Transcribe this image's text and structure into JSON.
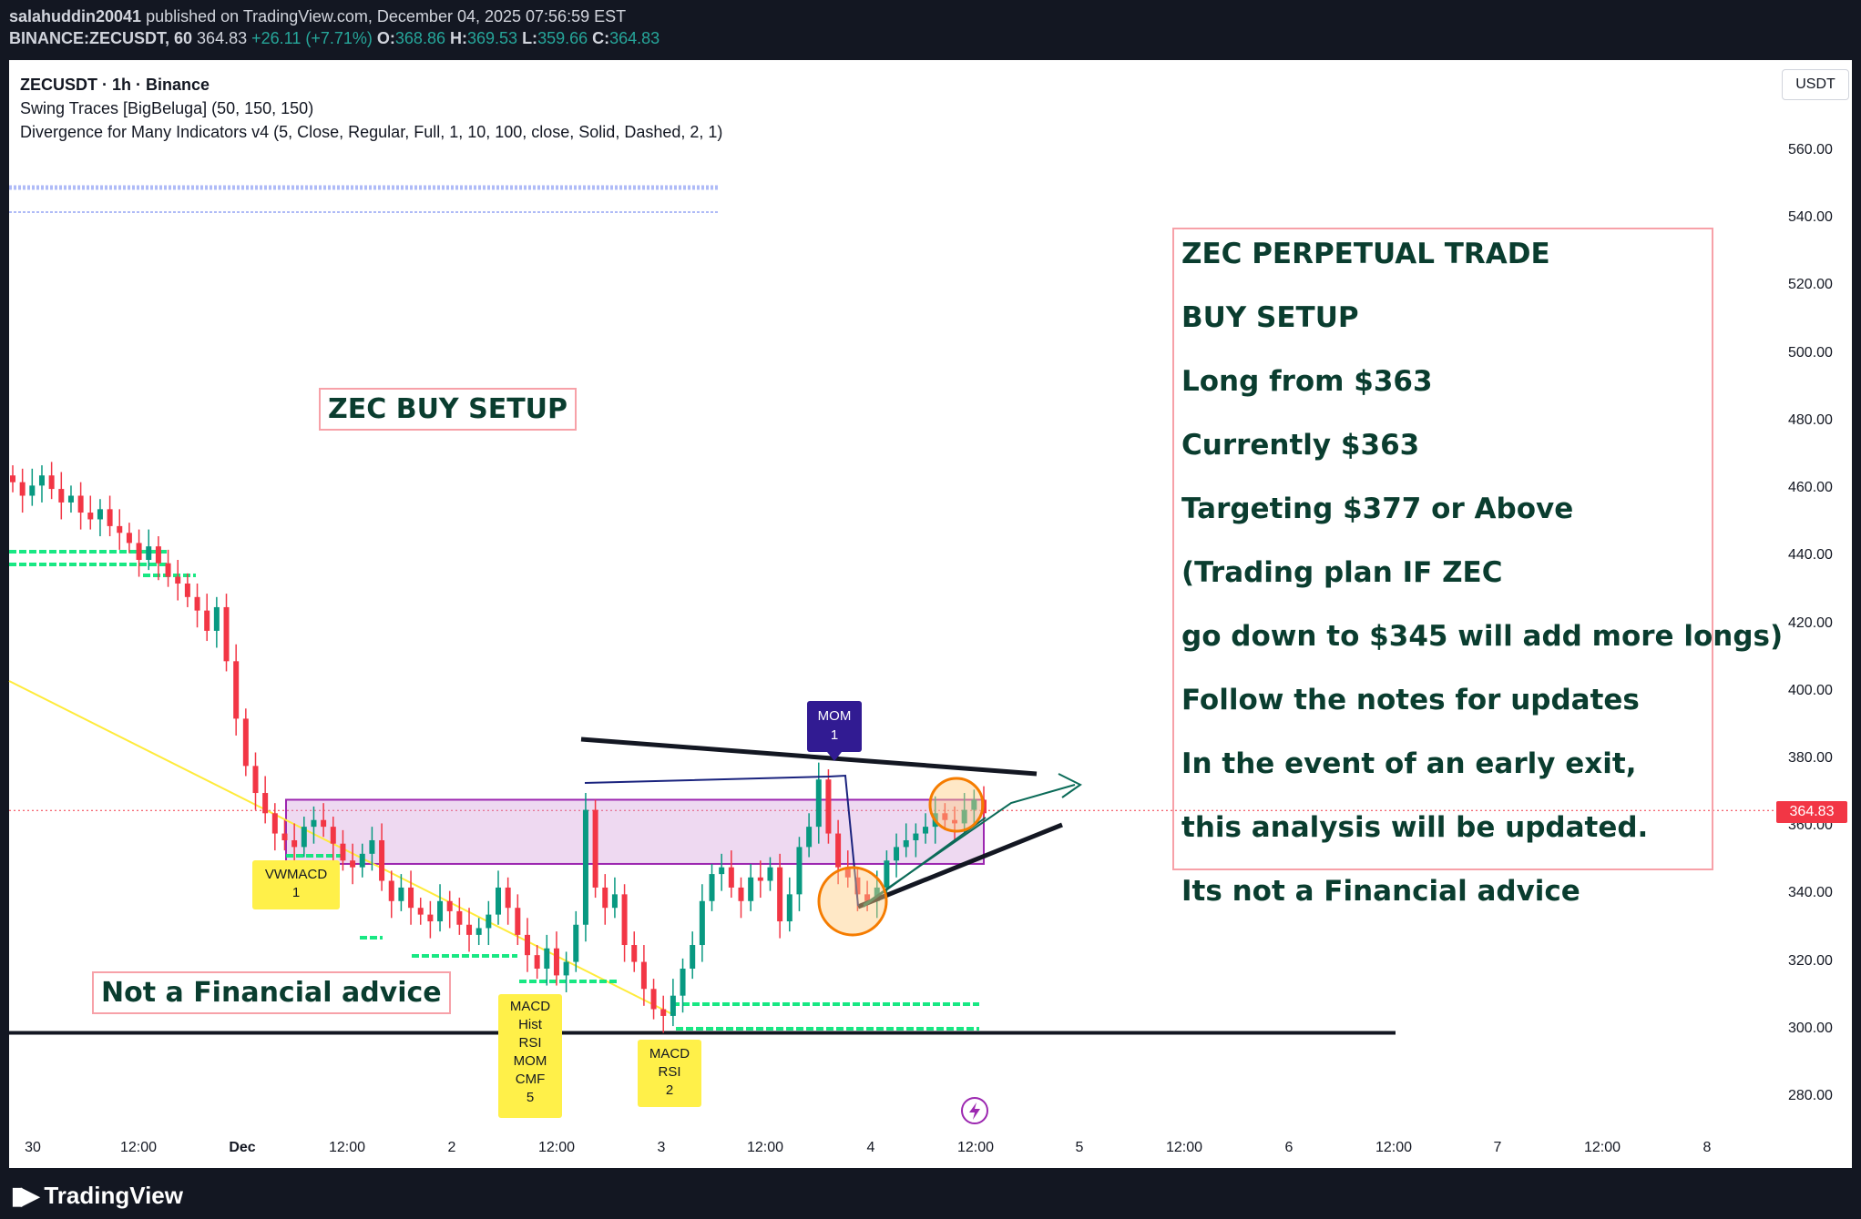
{
  "header": {
    "publisher": "salahuddin20041",
    "published_text": "published on TradingView.com, December 04, 2025 07:56:59 EST",
    "symbol_line": "BINANCE:ZECUSDT, 60",
    "last": "364.83",
    "change": "+26.11 (+7.71%)",
    "o": "368.86",
    "h": "369.53",
    "l": "359.66",
    "c": "364.83"
  },
  "legend": {
    "title": "ZECUSDT · 1h · Binance",
    "ind1": "Swing Traces [BigBeluga] (50, 150, 150)",
    "ind2": "Divergence for Many Indicators v4 (5, Close, Regular, Full, 1, 10, 100, close, Solid, Dashed, 2, 1)"
  },
  "currency_button": "USDT",
  "current_price_label": "364.83",
  "brand": "TradingView",
  "notes": {
    "buy_setup": "ZEC BUY SETUP",
    "nfa": "Not a Financial advice",
    "big": [
      "ZEC PERPETUAL TRADE",
      "BUY SETUP",
      "Long from $363",
      "Currently $363",
      "Targeting $377 or Above",
      "(Trading plan IF ZEC",
      "go down to $345 will add more longs)",
      "Follow the notes for updates",
      "In the event of an early exit,",
      "this analysis will be updated.",
      "Its not a Financial advice"
    ]
  },
  "divergence_labels": {
    "vwmacd": [
      "VWMACD",
      "1"
    ],
    "macd_hist": [
      "MACD",
      "Hist",
      "RSI",
      "MOM",
      "CMF",
      "5"
    ],
    "macd_rsi": [
      "MACD",
      "RSI",
      "2"
    ],
    "mom": [
      "MOM",
      "1"
    ]
  },
  "colors": {
    "up": "#089981",
    "down": "#f23645",
    "zone": "#9c27b0",
    "label_yellow": "#fff049",
    "note_border": "#f7a1a8",
    "note_text": "#0a3d2f",
    "mom_label": "#311b92"
  },
  "chart_data": {
    "type": "candlestick",
    "y_ticks": [
      "560.00",
      "540.00",
      "520.00",
      "500.00",
      "480.00",
      "460.00",
      "440.00",
      "420.00",
      "400.00",
      "380.00",
      "360.00",
      "340.00",
      "320.00",
      "300.00",
      "280.00"
    ],
    "x_ticks": [
      "30",
      "12:00",
      "Dec",
      "12:00",
      "2",
      "12:00",
      "3",
      "12:00",
      "4",
      "12:00",
      "5",
      "12:00",
      "6",
      "12:00",
      "7",
      "12:00",
      "8"
    ],
    "ylim": [
      280,
      560
    ],
    "buy_zone": [
      349,
      368
    ],
    "support_level": 299,
    "close_path": [
      462,
      458,
      461,
      464,
      460,
      456,
      458,
      453,
      451,
      454,
      449,
      447,
      444,
      439,
      443,
      438,
      434,
      432,
      428,
      424,
      418,
      425,
      409,
      392,
      378,
      370,
      364,
      358,
      356,
      354,
      360,
      362,
      360,
      355,
      350,
      348,
      352,
      356,
      344,
      338,
      342,
      336,
      334,
      332,
      338,
      335,
      331,
      328,
      330,
      334,
      342,
      336,
      328,
      322,
      318,
      324,
      316,
      320,
      331,
      365,
      342,
      336,
      340,
      325,
      320,
      312,
      306,
      304,
      310,
      318,
      325,
      338,
      346,
      348,
      342,
      338,
      345,
      344,
      348,
      332,
      340,
      354,
      360,
      374,
      358,
      348,
      345,
      340,
      338,
      342,
      350,
      354,
      356,
      358,
      360,
      364,
      362,
      361,
      365,
      368,
      364
    ]
  }
}
